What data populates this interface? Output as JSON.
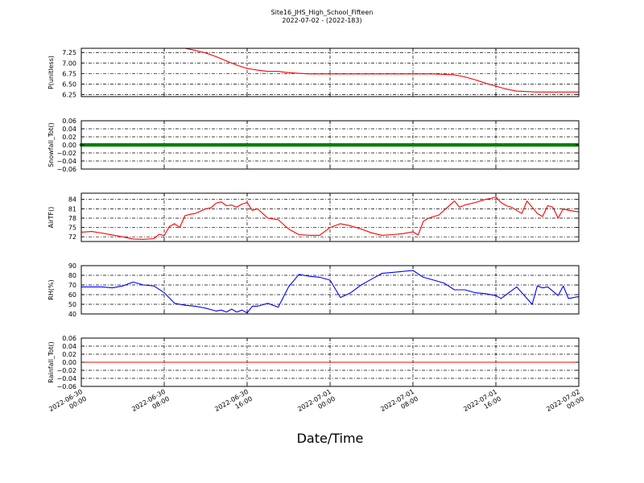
{
  "figure": {
    "title": "Site16_JHS_High_School_Fifteen",
    "subtitle": "2022-07-02 - (2022-183)",
    "xlabel": "Date/Time"
  },
  "chart_data": [
    {
      "type": "line",
      "ylabel": "P(unitless)",
      "xlim": [
        "2022-06-30 00:00",
        "2022-07-02 00:00"
      ],
      "ylim": [
        6.2,
        7.35
      ],
      "yticks": [
        "7.25",
        "7.00",
        "6.75",
        "6.50",
        "6.25"
      ],
      "ytick_values": [
        7.25,
        7.0,
        6.75,
        6.5,
        6.25
      ],
      "xticks": [
        "2022-06-30 00:00",
        "2022-06-30 08:00",
        "2022-06-30 16:00",
        "2022-07-01 00:00",
        "2022-07-01 08:00",
        "2022-07-01 16:00",
        "2022-07-02 00:00"
      ],
      "grid": true,
      "series": [
        {
          "color": "#ff0000",
          "x": [
            "2022-06-30 00:00",
            "2022-06-30 06:00",
            "2022-06-30 10:00",
            "2022-06-30 11:00",
            "2022-06-30 12:00",
            "2022-06-30 13:00",
            "2022-06-30 14:00",
            "2022-06-30 15:00",
            "2022-06-30 16:00",
            "2022-06-30 17:00",
            "2022-06-30 18:00",
            "2022-06-30 19:00",
            "2022-06-30 20:00",
            "2022-06-30 22:00",
            "2022-07-01 04:00",
            "2022-07-01 10:00",
            "2022-07-01 12:00",
            "2022-07-01 13:00",
            "2022-07-01 14:00",
            "2022-07-01 15:00",
            "2022-07-01 16:00",
            "2022-07-01 17:00",
            "2022-07-01 18:00",
            "2022-07-01 20:00",
            "2022-07-02 00:00"
          ],
          "y": [
            7.35,
            7.35,
            7.35,
            7.3,
            7.24,
            7.15,
            7.05,
            6.95,
            6.87,
            6.83,
            6.8,
            6.8,
            6.77,
            6.74,
            6.74,
            6.74,
            6.72,
            6.67,
            6.6,
            6.52,
            6.45,
            6.38,
            6.33,
            6.31,
            6.31
          ]
        }
      ]
    },
    {
      "type": "scatter",
      "ylabel": "Snowfall_Tot()",
      "xlim": [
        "2022-06-30 00:00",
        "2022-07-02 00:00"
      ],
      "ylim": [
        -0.06,
        0.06
      ],
      "yticks": [
        "0.06",
        "0.04",
        "0.02",
        "0.00",
        "−0.02",
        "−0.04",
        "−0.06"
      ],
      "ytick_values": [
        0.06,
        0.04,
        0.02,
        0,
        -0.02,
        -0.04,
        -0.06
      ],
      "grid": true,
      "series": [
        {
          "color": "#008000",
          "marker": "filled-circle",
          "constant_y": 0.0,
          "x_range": [
            "2022-06-30 00:00",
            "2022-07-02 00:00"
          ]
        }
      ]
    },
    {
      "type": "line",
      "ylabel": "AirTF()",
      "xlim": [
        "2022-06-30 00:00",
        "2022-07-02 00:00"
      ],
      "ylim": [
        70.5,
        86
      ],
      "yticks": [
        "84",
        "81",
        "78",
        "75",
        "72"
      ],
      "ytick_values": [
        84,
        81,
        78,
        75,
        72
      ],
      "grid": true,
      "series": [
        {
          "color": "#ff0000",
          "x": [
            "2022-06-30 00:00",
            "2022-06-30 01:00",
            "2022-06-30 02:00",
            "2022-06-30 03:00",
            "2022-06-30 04:00",
            "2022-06-30 05:00",
            "2022-06-30 06:00",
            "2022-06-30 07:00",
            "2022-06-30 07:30",
            "2022-06-30 08:00",
            "2022-06-30 08:30",
            "2022-06-30 09:00",
            "2022-06-30 09:30",
            "2022-06-30 10:00",
            "2022-06-30 10:30",
            "2022-06-30 11:00",
            "2022-06-30 12:00",
            "2022-06-30 12:30",
            "2022-06-30 13:00",
            "2022-06-30 13:30",
            "2022-06-30 14:00",
            "2022-06-30 14:30",
            "2022-06-30 15:00",
            "2022-06-30 15:30",
            "2022-06-30 16:00",
            "2022-06-30 16:30",
            "2022-06-30 17:00",
            "2022-06-30 17:30",
            "2022-06-30 18:00",
            "2022-06-30 19:00",
            "2022-06-30 20:00",
            "2022-06-30 21:00",
            "2022-06-30 22:00",
            "2022-06-30 23:00",
            "2022-07-01 00:00",
            "2022-07-01 01:00",
            "2022-07-01 02:00",
            "2022-07-01 03:00",
            "2022-07-01 04:00",
            "2022-07-01 05:00",
            "2022-07-01 06:00",
            "2022-07-01 07:00",
            "2022-07-01 08:00",
            "2022-07-01 08:30",
            "2022-07-01 09:00",
            "2022-07-01 09:30",
            "2022-07-01 10:00",
            "2022-07-01 10:30",
            "2022-07-01 11:00",
            "2022-07-01 12:00",
            "2022-07-01 12:30",
            "2022-07-01 13:00",
            "2022-07-01 14:00",
            "2022-07-01 15:00",
            "2022-07-01 15:30",
            "2022-07-01 16:00",
            "2022-07-01 16:30",
            "2022-07-01 17:00",
            "2022-07-01 17:30",
            "2022-07-01 18:00",
            "2022-07-01 18:30",
            "2022-07-01 19:00",
            "2022-07-01 19:30",
            "2022-07-01 20:00",
            "2022-07-01 20:30",
            "2022-07-01 21:00",
            "2022-07-01 21:30",
            "2022-07-01 22:00",
            "2022-07-01 22:30",
            "2022-07-01 23:00",
            "2022-07-02 00:00"
          ],
          "y": [
            73.5,
            73.7,
            73.2,
            72.6,
            72.0,
            71.3,
            71.2,
            71.4,
            72.8,
            72.4,
            75.3,
            76.2,
            75.0,
            78.8,
            79.2,
            79.5,
            81.0,
            81.3,
            82.8,
            83.2,
            82.0,
            82.2,
            81.5,
            82.5,
            83.0,
            80.5,
            81.0,
            79.5,
            78.0,
            77.5,
            74.5,
            72.7,
            72.5,
            72.5,
            75.0,
            76.2,
            75.5,
            74.5,
            73.3,
            72.5,
            72.7,
            73.0,
            73.6,
            72.6,
            77.0,
            78.0,
            78.5,
            79.0,
            80.5,
            83.5,
            81.5,
            82.2,
            83.0,
            84.0,
            84.3,
            84.8,
            83.0,
            82.0,
            81.5,
            80.5,
            79.5,
            83.5,
            81.5,
            79.5,
            78.5,
            82.0,
            81.5,
            78.0,
            81.0,
            80.5,
            80.0
          ]
        }
      ]
    },
    {
      "type": "line",
      "ylabel": "RH(%)",
      "xlim": [
        "2022-06-30 00:00",
        "2022-07-02 00:00"
      ],
      "ylim": [
        40,
        90
      ],
      "yticks": [
        "90",
        "80",
        "70",
        "60",
        "50",
        "40"
      ],
      "ytick_values": [
        90,
        80,
        70,
        60,
        50,
        40
      ],
      "grid": true,
      "series": [
        {
          "color": "#0000ff",
          "x": [
            "2022-06-30 00:00",
            "2022-06-30 01:00",
            "2022-06-30 02:00",
            "2022-06-30 03:00",
            "2022-06-30 04:00",
            "2022-06-30 05:00",
            "2022-06-30 06:00",
            "2022-06-30 07:00",
            "2022-06-30 08:00",
            "2022-06-30 09:00",
            "2022-06-30 10:00",
            "2022-06-30 11:00",
            "2022-06-30 12:00",
            "2022-06-30 13:00",
            "2022-06-30 13:30",
            "2022-06-30 14:00",
            "2022-06-30 14:30",
            "2022-06-30 15:00",
            "2022-06-30 15:30",
            "2022-06-30 16:00",
            "2022-06-30 16:30",
            "2022-06-30 17:00",
            "2022-06-30 18:00",
            "2022-06-30 19:00",
            "2022-06-30 20:00",
            "2022-06-30 21:00",
            "2022-06-30 22:00",
            "2022-06-30 23:00",
            "2022-07-01 00:00",
            "2022-07-01 01:00",
            "2022-07-01 02:00",
            "2022-07-01 03:00",
            "2022-07-01 04:00",
            "2022-07-01 05:00",
            "2022-07-01 06:00",
            "2022-07-01 07:00",
            "2022-07-01 08:00",
            "2022-07-01 09:00",
            "2022-07-01 10:00",
            "2022-07-01 11:00",
            "2022-07-01 12:00",
            "2022-07-01 13:00",
            "2022-07-01 14:00",
            "2022-07-01 15:00",
            "2022-07-01 16:00",
            "2022-07-01 16:30",
            "2022-07-01 17:00",
            "2022-07-01 18:00",
            "2022-07-01 19:00",
            "2022-07-01 19:30",
            "2022-07-01 20:00",
            "2022-07-01 20:30",
            "2022-07-01 21:00",
            "2022-07-01 22:00",
            "2022-07-01 22:30",
            "2022-07-01 23:00",
            "2022-07-02 00:00"
          ],
          "y": [
            68,
            68,
            68,
            67,
            69,
            73,
            70,
            69,
            62,
            51,
            49,
            48,
            46,
            43,
            44,
            42,
            45,
            42,
            44,
            41,
            48,
            48,
            51,
            47,
            68,
            81,
            79,
            78,
            75,
            57,
            62,
            70,
            76,
            82,
            83,
            84,
            85,
            78,
            75,
            72,
            65,
            65,
            62,
            61,
            59,
            56,
            60,
            68,
            56,
            50,
            69,
            67,
            68,
            59,
            69,
            56,
            58
          ]
        }
      ]
    },
    {
      "type": "line",
      "ylabel": "Rainfall_Tot()",
      "xlim": [
        "2022-06-30 00:00",
        "2022-07-02 00:00"
      ],
      "ylim": [
        -0.06,
        0.06
      ],
      "yticks": [
        "0.06",
        "0.04",
        "0.02",
        "0.00",
        "−0.02",
        "−0.04",
        "−0.06"
      ],
      "ytick_values": [
        0.06,
        0.04,
        0.02,
        0,
        -0.02,
        -0.04,
        -0.06
      ],
      "grid": true,
      "series": [
        {
          "color": "#ff0000",
          "x": [
            "2022-06-30 00:00",
            "2022-07-02 00:00"
          ],
          "y": [
            0,
            0
          ]
        }
      ]
    }
  ]
}
